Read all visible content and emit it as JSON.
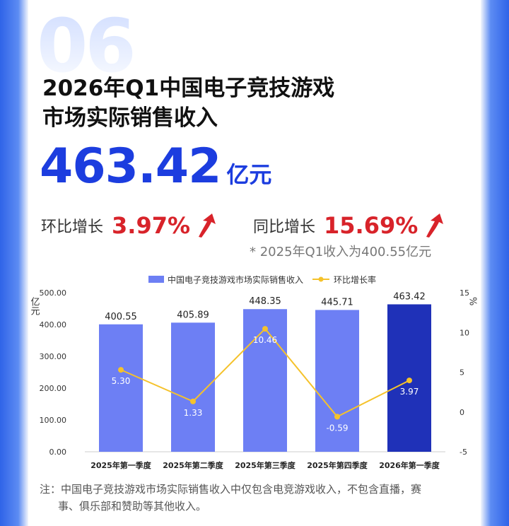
{
  "page": {
    "section_number": "06",
    "title_line1": "2026年Q1中国电子竞技游戏",
    "title_line2": "市场实际销售收入",
    "headline_value": "463.42",
    "headline_unit": "亿元",
    "qoq_label": "环比增长",
    "qoq_value": "3.97%",
    "yoy_label": "同比增长",
    "yoy_value": "15.69%",
    "note": "* 2025年Q1收入为400.55亿元",
    "footnote_line1": "注：中国电子竞技游戏市场实际销售收入中仅包含电竞游戏收入，不包含直播，赛",
    "footnote_line2": "事、俱乐部和赞助等其他收入。",
    "colors": {
      "accent": "#1c3ddf",
      "up": "#d8232a",
      "bar": "#6d7ff4",
      "bar_highlight": "#1f31b8",
      "line": "#f5c22b"
    }
  },
  "chart_data": {
    "type": "bar",
    "categories": [
      "2025年第一季度",
      "2025年第二季度",
      "2025年第三季度",
      "2025年第四季度",
      "2026年第一季度"
    ],
    "series": [
      {
        "name": "中国电子竞技游戏市场实际销售收入",
        "type": "bar",
        "axis": "left",
        "values": [
          400.55,
          405.89,
          448.35,
          445.71,
          463.42
        ],
        "labels": [
          "400.55",
          "405.89",
          "448.35",
          "445.71",
          "463.42"
        ]
      },
      {
        "name": "环比增长率",
        "type": "line",
        "axis": "right",
        "values": [
          5.3,
          1.33,
          10.46,
          -0.59,
          3.97
        ],
        "labels": [
          "5.30",
          "1.33",
          "10.46",
          "-0.59",
          "3.97"
        ]
      }
    ],
    "y_left": {
      "label": "亿元",
      "lim": [
        0,
        500
      ],
      "ticks": [
        "0.00",
        "100.00",
        "200.00",
        "300.00",
        "400.00",
        "500.00"
      ]
    },
    "y_right": {
      "label": "%",
      "lim": [
        -5,
        15
      ],
      "ticks": [
        "-5",
        "0",
        "5",
        "10",
        "15"
      ]
    },
    "legend": "top",
    "grid": false
  }
}
